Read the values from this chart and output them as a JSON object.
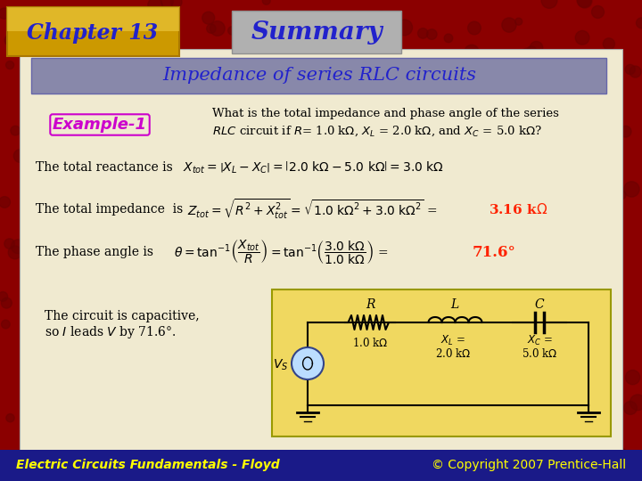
{
  "bg_color": "#8B0000",
  "main_bg": "#F0EAD0",
  "chapter_box_color": "#DAA520",
  "summary_box_color": "#A8A8A8",
  "title_box_color": "#8888AA",
  "title_text_color": "#2222CC",
  "chapter_text_color": "#2222CC",
  "summary_text_color": "#2222CC",
  "example_text_color": "#CC00CC",
  "body_text_color": "#000000",
  "highlight_color": "#FF2200",
  "footer_bg": "#1A1A88",
  "footer_text_color": "#FFFF00",
  "circuit_box_color": "#F0D860",
  "chapter_title": "Chapter 13",
  "summary_title": "Summary",
  "section_title": "Impedance of series RLC circuits",
  "example_label": "Example-1",
  "footer_left": "Electric Circuits Fundamentals - Floyd",
  "footer_right": "© Copyright 2007 Prentice-Hall"
}
